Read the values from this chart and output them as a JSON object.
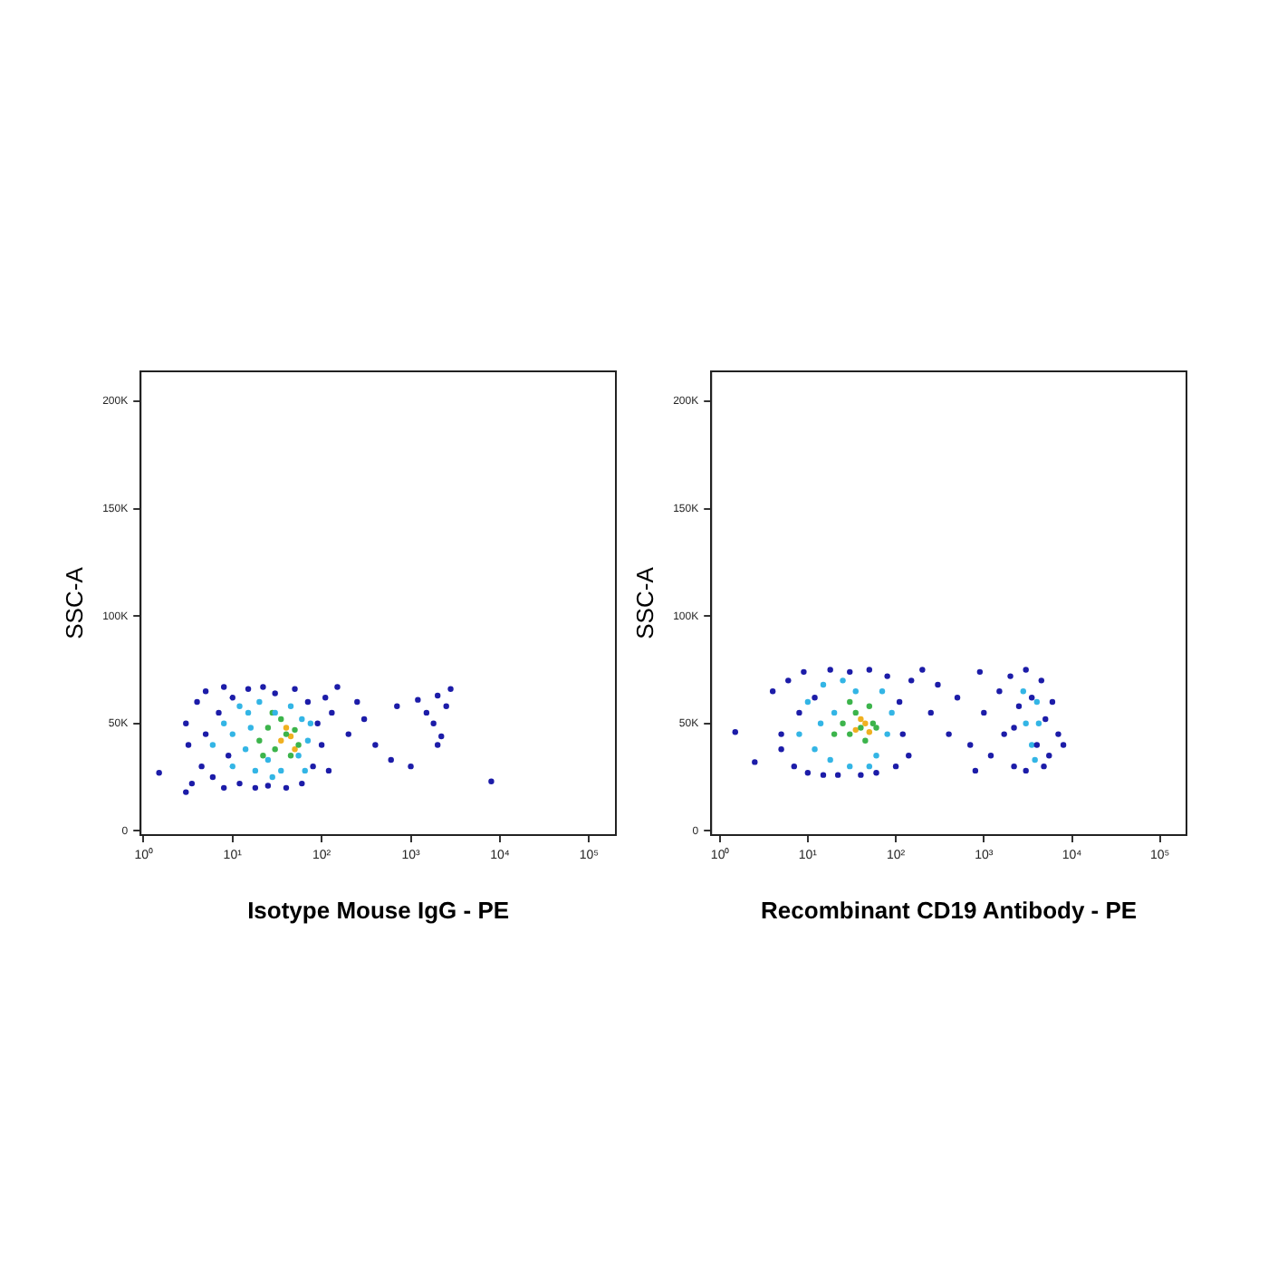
{
  "chart_data": [
    {
      "type": "scatter",
      "xlabel": "Isotype Mouse IgG - PE",
      "ylabel": "SSC-A",
      "log": "x",
      "grid": false,
      "legend": false,
      "marker": "circle",
      "xlim": [
        0.93,
        200000
      ],
      "ylim": [
        -2000,
        214000
      ],
      "xticks": [
        {
          "value": 1,
          "label": "10⁰"
        },
        {
          "value": 10,
          "label": "10¹"
        },
        {
          "value": 100,
          "label": "10²"
        },
        {
          "value": 1000,
          "label": "10³"
        },
        {
          "value": 10000,
          "label": "10⁴"
        },
        {
          "value": 100000,
          "label": "10⁵"
        }
      ],
      "yticks": [
        0,
        {
          "value": 50000,
          "label": "50K"
        },
        {
          "value": 100000,
          "label": "100K"
        },
        {
          "value": 150000,
          "label": "150K"
        },
        {
          "value": 200000,
          "label": "200K"
        }
      ],
      "series": [
        {
          "color": "#1c1ca8",
          "x": [
            3,
            3.2,
            3.5,
            4,
            4.5,
            5,
            5,
            6,
            7,
            8,
            8,
            9,
            10,
            12,
            15,
            18,
            22,
            25,
            30,
            40,
            50,
            60,
            70,
            80,
            90,
            100,
            110,
            130,
            150,
            200,
            250,
            300,
            400,
            600,
            700,
            1000,
            1200,
            1500,
            1800,
            2000,
            2200,
            2500,
            2800,
            2000,
            8000,
            1.5,
            3,
            120
          ],
          "values": [
            50000,
            40000,
            22000,
            60000,
            30000,
            65000,
            45000,
            25000,
            55000,
            67000,
            20000,
            35000,
            62000,
            22000,
            66000,
            20000,
            67000,
            21000,
            64000,
            20000,
            66000,
            22000,
            60000,
            30000,
            50000,
            40000,
            62000,
            55000,
            67000,
            45000,
            60000,
            52000,
            40000,
            33000,
            58000,
            30000,
            61000,
            55000,
            50000,
            63000,
            44000,
            58000,
            66000,
            40000,
            23000,
            27000,
            18000,
            28000
          ]
        },
        {
          "color": "#33b5e5",
          "x": [
            6,
            8,
            10,
            12,
            14,
            16,
            18,
            20,
            25,
            30,
            35,
            45,
            55,
            60,
            70,
            15,
            10,
            28,
            65,
            75
          ],
          "values": [
            40000,
            50000,
            30000,
            58000,
            38000,
            48000,
            28000,
            60000,
            33000,
            55000,
            28000,
            58000,
            35000,
            52000,
            42000,
            55000,
            45000,
            25000,
            28000,
            50000
          ]
        },
        {
          "color": "#3cb44b",
          "x": [
            20,
            25,
            30,
            35,
            40,
            45,
            50,
            28,
            55,
            22
          ],
          "values": [
            42000,
            48000,
            38000,
            52000,
            45000,
            35000,
            47000,
            55000,
            40000,
            35000
          ]
        },
        {
          "color": "#f0b020",
          "x": [
            35,
            40,
            45,
            50
          ],
          "values": [
            42000,
            48000,
            44000,
            38000
          ]
        }
      ]
    },
    {
      "type": "scatter",
      "xlabel": "Recombinant CD19 Antibody - PE",
      "ylabel": "SSC-A",
      "log": "x",
      "grid": false,
      "legend": false,
      "marker": "circle",
      "xlim": [
        0.8,
        200000
      ],
      "ylim": [
        -2000,
        214000
      ],
      "xticks": [
        {
          "value": 1,
          "label": "10⁰"
        },
        {
          "value": 10,
          "label": "10¹"
        },
        {
          "value": 100,
          "label": "10²"
        },
        {
          "value": 1000,
          "label": "10³"
        },
        {
          "value": 10000,
          "label": "10⁴"
        },
        {
          "value": 100000,
          "label": "10⁵"
        }
      ],
      "yticks": [
        0,
        {
          "value": 50000,
          "label": "50K"
        },
        {
          "value": 100000,
          "label": "100K"
        },
        {
          "value": 150000,
          "label": "150K"
        },
        {
          "value": 200000,
          "label": "200K"
        }
      ],
      "series": [
        {
          "color": "#1c1ca8",
          "x": [
            4,
            5,
            5,
            6,
            7,
            8,
            9,
            10,
            12,
            15,
            18,
            22,
            30,
            40,
            50,
            60,
            80,
            100,
            110,
            120,
            140,
            150,
            200,
            250,
            300,
            400,
            500,
            700,
            900,
            800,
            1000,
            1200,
            1500,
            1700,
            2000,
            2200,
            2500,
            3000,
            3000,
            3500,
            4000,
            4500,
            5000,
            5500,
            6000,
            7000,
            8000,
            1.5,
            2.5,
            2200,
            4800
          ],
          "values": [
            65000,
            45000,
            38000,
            70000,
            30000,
            55000,
            74000,
            27000,
            62000,
            26000,
            75000,
            26000,
            74000,
            26000,
            75000,
            27000,
            72000,
            30000,
            60000,
            45000,
            35000,
            70000,
            75000,
            55000,
            68000,
            45000,
            62000,
            40000,
            74000,
            28000,
            55000,
            35000,
            65000,
            45000,
            72000,
            30000,
            58000,
            75000,
            28000,
            62000,
            40000,
            70000,
            52000,
            35000,
            60000,
            45000,
            40000,
            46000,
            32000,
            48000,
            30000
          ]
        },
        {
          "color": "#33b5e5",
          "x": [
            8,
            10,
            12,
            15,
            18,
            20,
            25,
            30,
            35,
            60,
            70,
            80,
            90,
            14,
            3000,
            3500,
            4000,
            4200,
            2800,
            3800,
            50
          ],
          "values": [
            45000,
            60000,
            38000,
            68000,
            33000,
            55000,
            70000,
            30000,
            65000,
            35000,
            65000,
            45000,
            55000,
            50000,
            50000,
            40000,
            60000,
            50000,
            65000,
            33000,
            30000
          ]
        },
        {
          "color": "#3cb44b",
          "x": [
            25,
            30,
            35,
            40,
            45,
            50,
            55,
            20,
            60,
            30
          ],
          "values": [
            50000,
            45000,
            55000,
            48000,
            42000,
            58000,
            50000,
            45000,
            48000,
            60000
          ]
        },
        {
          "color": "#f0b020",
          "x": [
            40,
            45,
            50,
            35
          ],
          "values": [
            52000,
            50000,
            46000,
            47000
          ]
        }
      ]
    }
  ]
}
